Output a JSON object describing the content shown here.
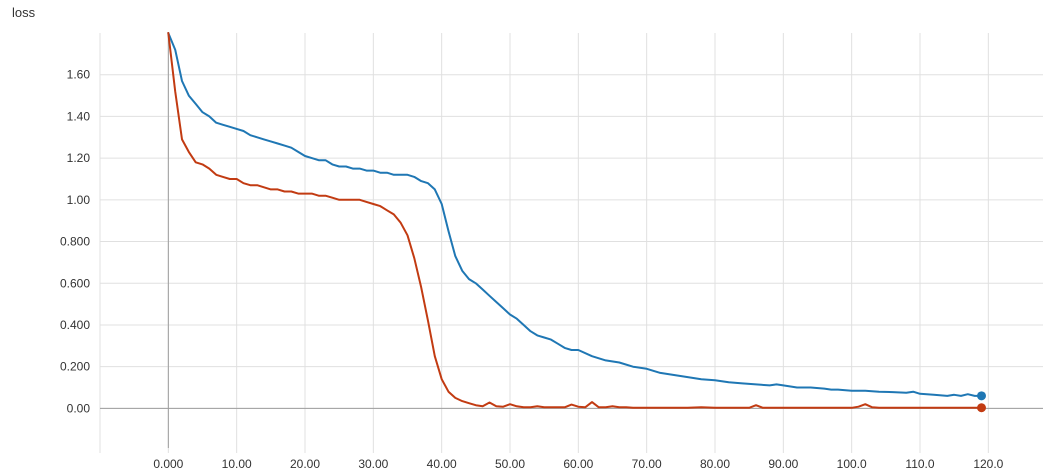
{
  "chart_data": {
    "type": "line",
    "title": "loss",
    "xlabel": "",
    "ylabel": "",
    "xlim": [
      -10,
      128
    ],
    "ylim": [
      -0.19,
      1.8
    ],
    "grid": true,
    "legend": "none",
    "x_ticks": [
      0,
      10,
      20,
      30,
      40,
      50,
      60,
      70,
      80,
      90,
      100,
      110,
      120
    ],
    "x_tick_labels": [
      "0.000",
      "10.00",
      "20.00",
      "30.00",
      "40.00",
      "50.00",
      "60.00",
      "70.00",
      "80.00",
      "90.00",
      "100.0",
      "110.0",
      "120.0"
    ],
    "y_ticks": [
      0,
      0.2,
      0.4,
      0.6,
      0.8,
      1.0,
      1.2,
      1.4,
      1.6
    ],
    "y_tick_labels": [
      "0.00",
      "0.200",
      "0.400",
      "0.600",
      "0.800",
      "1.00",
      "1.20",
      "1.40",
      "1.60"
    ],
    "series": [
      {
        "color": "#1f77b4",
        "x": [
          0,
          1,
          2,
          3,
          4,
          5,
          6,
          7,
          8,
          9,
          10,
          11,
          12,
          13,
          14,
          15,
          16,
          17,
          18,
          19,
          20,
          21,
          22,
          23,
          24,
          25,
          26,
          27,
          28,
          29,
          30,
          31,
          32,
          33,
          34,
          35,
          36,
          37,
          38,
          39,
          40,
          41,
          42,
          43,
          44,
          45,
          46,
          47,
          48,
          49,
          50,
          51,
          52,
          53,
          54,
          55,
          56,
          57,
          58,
          59,
          60,
          62,
          64,
          66,
          68,
          70,
          72,
          74,
          76,
          78,
          80,
          82,
          84,
          86,
          88,
          89,
          90,
          92,
          94,
          96,
          97,
          98,
          100,
          102,
          104,
          106,
          108,
          109,
          110,
          112,
          114,
          115,
          116,
          117,
          118,
          119
        ],
        "y": [
          1.8,
          1.72,
          1.57,
          1.5,
          1.46,
          1.42,
          1.4,
          1.37,
          1.36,
          1.35,
          1.34,
          1.33,
          1.31,
          1.3,
          1.29,
          1.28,
          1.27,
          1.26,
          1.25,
          1.23,
          1.21,
          1.2,
          1.19,
          1.19,
          1.17,
          1.16,
          1.16,
          1.15,
          1.15,
          1.14,
          1.14,
          1.13,
          1.13,
          1.12,
          1.12,
          1.12,
          1.11,
          1.09,
          1.08,
          1.05,
          0.98,
          0.85,
          0.73,
          0.66,
          0.62,
          0.6,
          0.57,
          0.54,
          0.51,
          0.48,
          0.45,
          0.43,
          0.4,
          0.37,
          0.35,
          0.34,
          0.33,
          0.31,
          0.29,
          0.28,
          0.28,
          0.25,
          0.23,
          0.22,
          0.2,
          0.19,
          0.17,
          0.16,
          0.15,
          0.14,
          0.135,
          0.125,
          0.12,
          0.115,
          0.11,
          0.115,
          0.11,
          0.1,
          0.1,
          0.095,
          0.09,
          0.09,
          0.085,
          0.085,
          0.08,
          0.078,
          0.075,
          0.08,
          0.07,
          0.065,
          0.06,
          0.065,
          0.06,
          0.068,
          0.06,
          0.06
        ]
      },
      {
        "color": "#c23b12",
        "x": [
          0,
          1,
          2,
          3,
          4,
          5,
          6,
          7,
          8,
          9,
          10,
          11,
          12,
          13,
          14,
          15,
          16,
          17,
          18,
          19,
          20,
          21,
          22,
          23,
          24,
          25,
          26,
          27,
          28,
          29,
          30,
          31,
          32,
          33,
          34,
          35,
          36,
          37,
          38,
          39,
          40,
          41,
          42,
          43,
          44,
          45,
          46,
          47,
          48,
          49,
          50,
          51,
          52,
          53,
          54,
          55,
          56,
          57,
          58,
          59,
          60,
          61,
          62,
          63,
          64,
          65,
          66,
          67,
          68,
          70,
          72,
          74,
          76,
          78,
          80,
          82,
          84,
          85,
          86,
          87,
          88,
          90,
          92,
          94,
          96,
          98,
          100,
          101,
          102,
          103,
          104,
          106,
          108,
          110,
          112,
          114,
          116,
          118,
          119
        ],
        "y": [
          1.8,
          1.52,
          1.29,
          1.23,
          1.18,
          1.17,
          1.15,
          1.12,
          1.11,
          1.1,
          1.1,
          1.08,
          1.07,
          1.07,
          1.06,
          1.05,
          1.05,
          1.04,
          1.04,
          1.03,
          1.03,
          1.03,
          1.02,
          1.02,
          1.01,
          1.0,
          1.0,
          1.0,
          1.0,
          0.99,
          0.98,
          0.97,
          0.95,
          0.93,
          0.89,
          0.83,
          0.72,
          0.58,
          0.42,
          0.25,
          0.14,
          0.08,
          0.05,
          0.035,
          0.025,
          0.015,
          0.01,
          0.028,
          0.01,
          0.008,
          0.02,
          0.01,
          0.005,
          0.005,
          0.01,
          0.005,
          0.005,
          0.005,
          0.005,
          0.018,
          0.008,
          0.005,
          0.03,
          0.005,
          0.005,
          0.01,
          0.005,
          0.005,
          0.003,
          0.003,
          0.003,
          0.003,
          0.003,
          0.005,
          0.003,
          0.003,
          0.003,
          0.003,
          0.015,
          0.003,
          0.003,
          0.003,
          0.003,
          0.003,
          0.003,
          0.003,
          0.003,
          0.008,
          0.02,
          0.005,
          0.003,
          0.003,
          0.003,
          0.003,
          0.003,
          0.003,
          0.003,
          0.003,
          0.003
        ]
      }
    ]
  }
}
